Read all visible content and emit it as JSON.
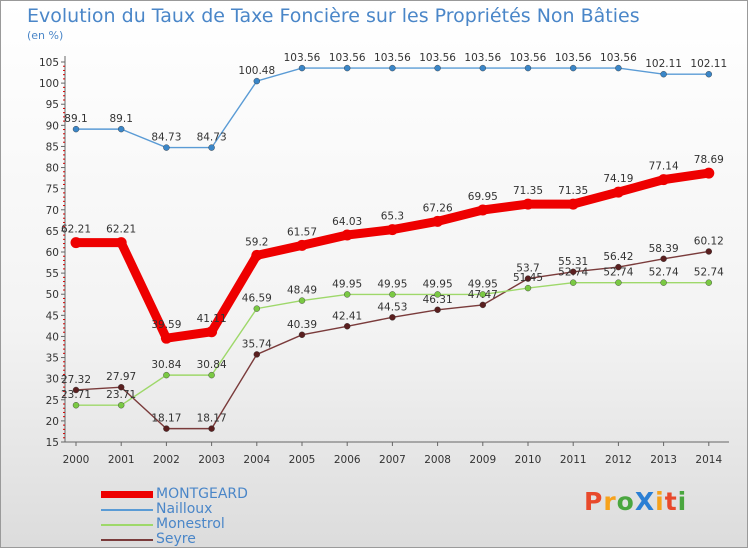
{
  "header": {
    "title": "Evolution du Taux de Taxe Foncière sur les Propriétés Non Bâties",
    "unit": "(en %)"
  },
  "logo": {
    "text": "ProXiti",
    "colors": [
      "#e8492b",
      "#f7a21b",
      "#4aa63f",
      "#2b7fd4",
      "#f7a21b",
      "#e8492b",
      "#4aa63f"
    ]
  },
  "chart_data": {
    "type": "line",
    "title": "Evolution du Taux de Taxe Foncière sur les Propriétés Non Bâties",
    "ylabel": "(en %)",
    "xlabel": "",
    "x": [
      "2000",
      "2001",
      "2002",
      "2003",
      "2004",
      "2005",
      "2006",
      "2007",
      "2008",
      "2009",
      "2010",
      "2011",
      "2012",
      "2013",
      "2014"
    ],
    "ylim": [
      15,
      105
    ],
    "yticks": [
      15,
      20,
      25,
      30,
      35,
      40,
      45,
      50,
      55,
      60,
      65,
      70,
      75,
      80,
      85,
      90,
      95,
      100,
      105
    ],
    "grid": false,
    "legend_position": "bottom-left",
    "series": [
      {
        "name": "MONTGEARD",
        "color": "#ee0000",
        "bold": true,
        "values": [
          62.21,
          62.21,
          39.59,
          41.11,
          59.2,
          61.57,
          64.03,
          65.3,
          67.26,
          69.95,
          71.35,
          71.35,
          74.19,
          77.14,
          78.69
        ],
        "labels": [
          "62.21",
          "62.21",
          "39.59",
          "41.11",
          "59.2",
          "61.57",
          "64.03",
          "65.3",
          "67.26",
          "69.95",
          "71.35",
          "71.35",
          "74.19",
          "77.14",
          "78.69"
        ]
      },
      {
        "name": "Nailloux",
        "color": "#5a9bd5",
        "dot": "#3a86c8",
        "values": [
          89.1,
          89.1,
          84.73,
          84.73,
          100.48,
          103.56,
          103.56,
          103.56,
          103.56,
          103.56,
          103.56,
          103.56,
          103.56,
          102.11,
          102.11
        ],
        "labels": [
          "89.1",
          "89.1",
          "84.73",
          "84.73",
          "100.48",
          "103.56",
          "103.56",
          "103.56",
          "103.56",
          "103.56",
          "103.56",
          "103.56",
          "103.56",
          "102.11",
          "102.11"
        ]
      },
      {
        "name": "Monestrol",
        "color": "#9ed86a",
        "dot": "#7ac943",
        "values": [
          23.71,
          23.71,
          30.84,
          30.84,
          46.59,
          48.49,
          49.95,
          49.95,
          49.95,
          49.95,
          51.45,
          52.74,
          52.74,
          52.74,
          52.74
        ],
        "labels": [
          "23.71",
          "23.71",
          "30.84",
          "30.84",
          "46.59",
          "48.49",
          "49.95",
          "49.95",
          "49.95",
          "49.95",
          "51.45",
          "52.74",
          "52.74",
          "52.74",
          "52.74"
        ]
      },
      {
        "name": "Seyre",
        "color": "#7a3b3b",
        "dot": "#5a1f1f",
        "values": [
          27.32,
          27.97,
          18.17,
          18.17,
          35.74,
          40.39,
          42.41,
          44.53,
          46.31,
          47.47,
          53.7,
          55.31,
          56.42,
          58.39,
          60.12
        ],
        "labels": [
          "27.32",
          "27.97",
          "18.17",
          "18.17",
          "35.74",
          "40.39",
          "42.41",
          "44.53",
          "46.31",
          "47.47",
          "53.7",
          "55.31",
          "56.42",
          "58.39",
          "60.12"
        ]
      }
    ]
  }
}
